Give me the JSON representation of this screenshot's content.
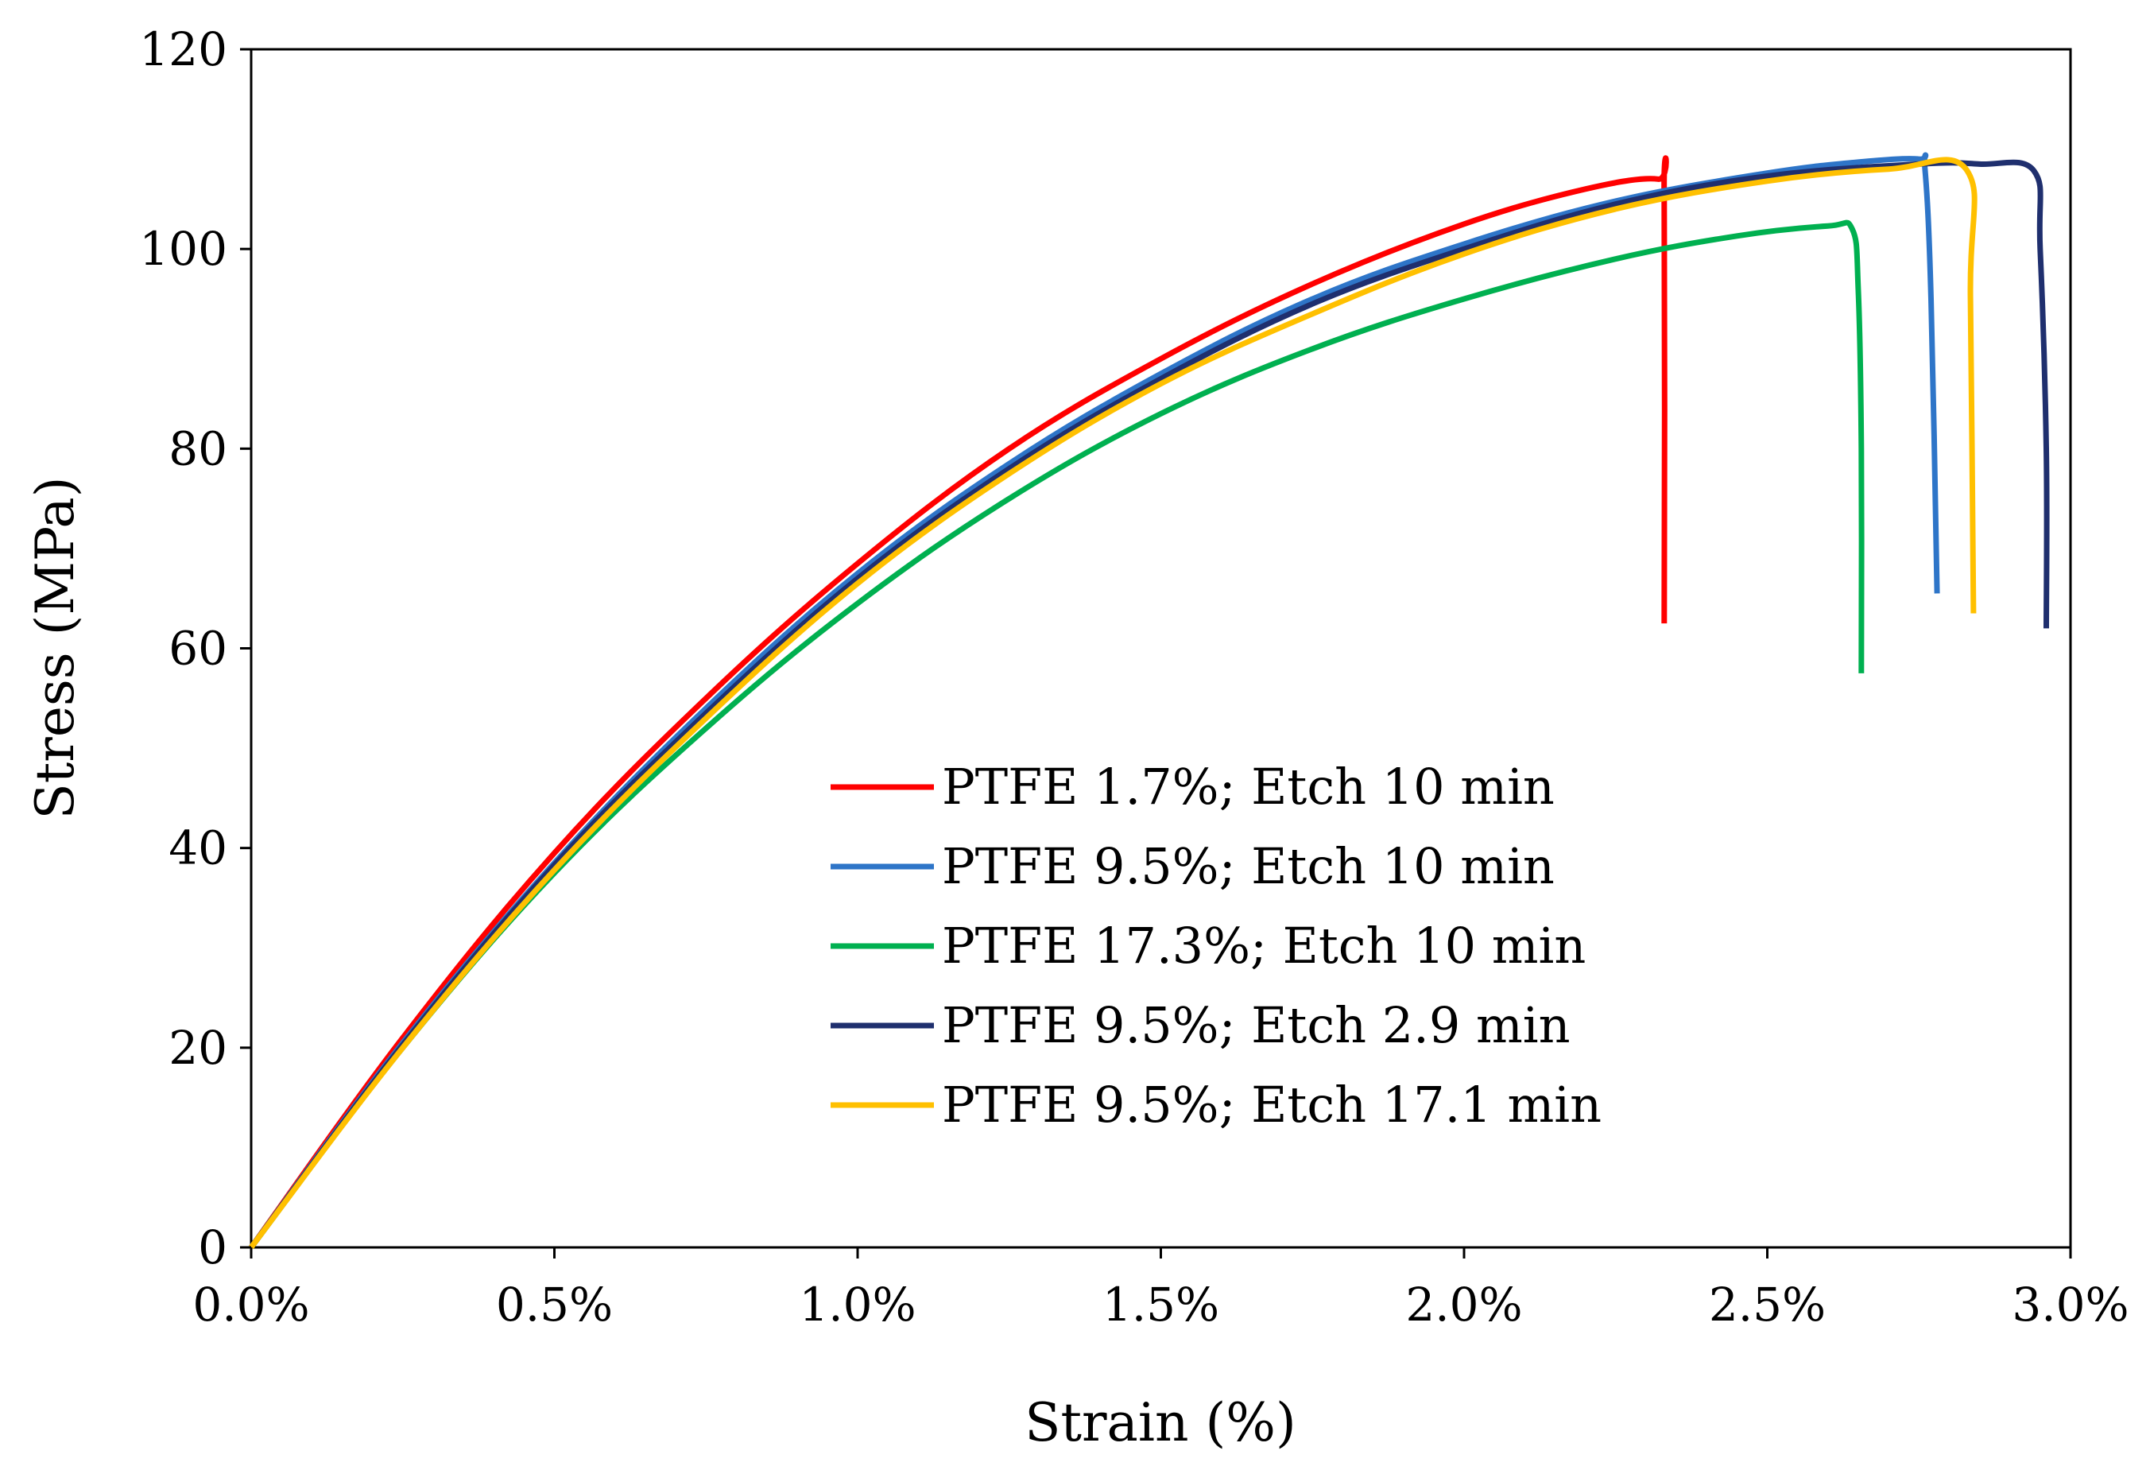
{
  "chart_data": {
    "type": "line",
    "title": "",
    "xlabel": "Strain (%)",
    "ylabel": "Stress (MPa)",
    "xlim": [
      0,
      3.0
    ],
    "ylim": [
      0,
      120
    ],
    "grid": false,
    "legend_position": "center",
    "x_ticks": [
      {
        "value": 0.0,
        "label": "0.0%"
      },
      {
        "value": 0.5,
        "label": "0.5%"
      },
      {
        "value": 1.0,
        "label": "1.0%"
      },
      {
        "value": 1.5,
        "label": "1.5%"
      },
      {
        "value": 2.0,
        "label": "2.0%"
      },
      {
        "value": 2.5,
        "label": "2.5%"
      },
      {
        "value": 3.0,
        "label": "3.0%"
      }
    ],
    "y_ticks": [
      {
        "value": 0,
        "label": "0"
      },
      {
        "value": 20,
        "label": "20"
      },
      {
        "value": 40,
        "label": "40"
      },
      {
        "value": 60,
        "label": "60"
      },
      {
        "value": 80,
        "label": "80"
      },
      {
        "value": 100,
        "label": "100"
      },
      {
        "value": 120,
        "label": "120"
      }
    ],
    "series": [
      {
        "name": "PTFE 1.7%; Etch 10 min",
        "color": "#ff0000",
        "x": [
          0,
          0.25,
          0.5,
          0.75,
          1.0,
          1.25,
          1.5,
          1.75,
          2.0,
          2.2,
          2.32,
          2.33,
          2.33
        ],
        "y": [
          0,
          21,
          39.5,
          55,
          68.5,
          80,
          89,
          96.5,
          102.5,
          106,
          107,
          105,
          62.5
        ]
      },
      {
        "name": "PTFE 9.5%; Etch 10 min",
        "color": "#2e75c8",
        "x": [
          0,
          0.25,
          0.5,
          0.75,
          1.0,
          1.25,
          1.5,
          1.75,
          2.0,
          2.25,
          2.5,
          2.65,
          2.75,
          2.76,
          2.77,
          2.78
        ],
        "y": [
          0,
          20.5,
          38.5,
          54,
          67.5,
          78.5,
          87.5,
          95,
          100.5,
          104.8,
          107.6,
          108.7,
          109,
          108,
          95,
          65.5
        ]
      },
      {
        "name": "PTFE 17.3%; Etch 10 min",
        "color": "#00b050",
        "x": [
          0,
          0.25,
          0.5,
          0.75,
          1.0,
          1.25,
          1.5,
          1.75,
          2.0,
          2.25,
          2.45,
          2.6,
          2.64,
          2.65,
          2.655,
          2.655
        ],
        "y": [
          0,
          20,
          37.5,
          52,
          64.5,
          75,
          83.5,
          90,
          95,
          99,
          101.3,
          102.3,
          102,
          96,
          80,
          57.5
        ]
      },
      {
        "name": "PTFE 9.5%; Etch 2.9 min",
        "color": "#1f2f6e",
        "x": [
          0,
          0.25,
          0.5,
          0.75,
          1.0,
          1.25,
          1.5,
          1.75,
          2.0,
          2.25,
          2.5,
          2.75,
          2.85,
          2.94,
          2.95,
          2.96,
          2.96
        ],
        "y": [
          0,
          20.3,
          38.3,
          53.5,
          67,
          78,
          87,
          94.5,
          100,
          104.5,
          107.3,
          108.5,
          108.5,
          107.8,
          100,
          80,
          62
        ]
      },
      {
        "name": "PTFE 9.5%; Etch 17.1 min",
        "color": "#ffc000",
        "x": [
          0,
          0.25,
          0.5,
          0.75,
          1.0,
          1.25,
          1.5,
          1.75,
          2.0,
          2.25,
          2.5,
          2.7,
          2.83,
          2.835,
          2.84
        ],
        "y": [
          0,
          20,
          37.8,
          53,
          66.5,
          77.5,
          86.5,
          93.5,
          99.5,
          104,
          106.8,
          108,
          107.8,
          95,
          63.5
        ]
      }
    ]
  }
}
